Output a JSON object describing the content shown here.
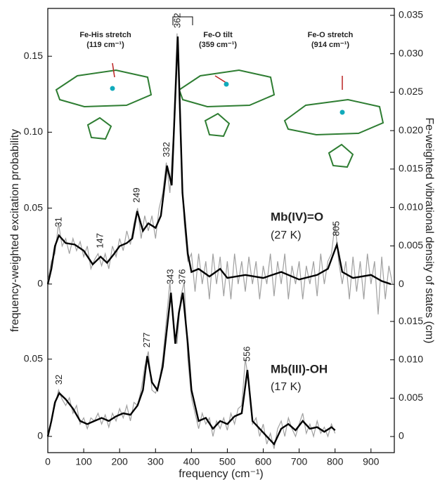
{
  "chart_data": [
    {
      "type": "line",
      "title": "Mb(IV)=O",
      "subtitle": "(27 K)",
      "xlim": [
        0,
        965
      ],
      "ylim": [
        -0.111,
        0.1815
      ],
      "yticks": [
        0,
        0.05,
        {
          "value": 0.1,
          "label": "0.10"
        },
        0.15
      ],
      "y2lim": [
        -0.0219,
        0.0359
      ],
      "y2ticks": [
        0,
        0.005,
        {
          "value": 0.01,
          "label": "0.010"
        },
        0.015,
        {
          "value": 0.02,
          "label": "0.020"
        },
        0.025,
        {
          "value": 0.03,
          "label": "0.030"
        },
        0.035
      ],
      "peaks": [
        31,
        147,
        249,
        332,
        362,
        805
      ],
      "annotations": [
        "Fe-His stretch",
        "(119 cm⁻¹)",
        "Fe-O tilt",
        "(359 cm⁻¹)",
        "Fe-O stretch",
        "(914 cm⁻¹)"
      ],
      "series": [
        {
          "color": "#a0a0a0",
          "x": [
            0,
            10,
            20,
            30,
            40,
            50,
            60,
            70,
            80,
            90,
            100,
            110,
            120,
            130,
            140,
            150,
            160,
            170,
            180,
            190,
            200,
            210,
            220,
            230,
            240,
            250,
            260,
            270,
            280,
            290,
            300,
            310,
            320,
            330,
            340,
            350,
            360,
            370,
            380,
            390,
            400,
            410,
            420,
            430,
            440,
            450,
            460,
            470,
            480,
            490,
            500,
            510,
            520,
            530,
            540,
            550,
            560,
            570,
            580,
            590,
            600,
            610,
            620,
            630,
            640,
            650,
            660,
            670,
            680,
            690,
            700,
            710,
            720,
            730,
            740,
            750,
            760,
            770,
            780,
            790,
            800,
            810,
            820,
            830,
            840,
            850,
            860,
            870,
            880,
            890,
            900,
            910,
            920,
            930,
            940,
            950,
            960
          ],
          "values": [
            0.002,
            0.015,
            0.02,
            0.04,
            0.025,
            0.03,
            0.02,
            0.03,
            0.022,
            0.028,
            0.018,
            0.025,
            0.01,
            0.016,
            0.02,
            0.012,
            0.02,
            0.01,
            0.025,
            0.018,
            0.03,
            0.022,
            0.035,
            0.026,
            0.04,
            0.05,
            0.03,
            0.045,
            0.035,
            0.045,
            0.03,
            0.05,
            0.06,
            0.08,
            0.06,
            0.1,
            0.165,
            0.09,
            0.04,
            0.015,
            0.02,
            -0.005,
            0.02,
            0,
            0.015,
            -0.01,
            0.02,
            0,
            0.018,
            -0.008,
            0.015,
            -0.01,
            0.02,
            0,
            0.015,
            -0.005,
            0.018,
            0,
            0.015,
            -0.01,
            0.012,
            0,
            0.02,
            -0.008,
            0.015,
            0,
            0.02,
            -0.01,
            0.012,
            0,
            0.015,
            -0.01,
            0.012,
            0,
            0.015,
            -0.008,
            0.02,
            0,
            0.015,
            0.02,
            0.04,
            0.015,
            0,
            0.015,
            -0.01,
            0.018,
            -0.005,
            0.015,
            -0.01,
            0.02,
            0,
            0.015,
            -0.02,
            0.018,
            -0.01,
            0.012,
            0
          ]
        },
        {
          "color": "#000000",
          "x": [
            0,
            10,
            20,
            31,
            50,
            75,
            100,
            125,
            147,
            165,
            185,
            200,
            220,
            235,
            249,
            265,
            280,
            300,
            315,
            332,
            345,
            362,
            375,
            390,
            400,
            420,
            450,
            480,
            500,
            550,
            600,
            650,
            700,
            750,
            780,
            805,
            820,
            850,
            900,
            930,
            955
          ],
          "values": [
            0,
            0.01,
            0.025,
            0.032,
            0.027,
            0.026,
            0.022,
            0.013,
            0.018,
            0.014,
            0.02,
            0.025,
            0.027,
            0.03,
            0.048,
            0.035,
            0.04,
            0.037,
            0.045,
            0.078,
            0.065,
            0.163,
            0.06,
            0.02,
            0.008,
            0.01,
            0.005,
            0.01,
            0.004,
            0.006,
            0.004,
            0.008,
            0.003,
            0.006,
            0.01,
            0.026,
            0.008,
            0.004,
            0.006,
            0.002,
            0
          ]
        }
      ]
    },
    {
      "type": "line",
      "title": "Mb(III)-OH",
      "subtitle": "(17 K)",
      "xlabel": "frequency (cm⁻¹)",
      "ylabel": "frequency-weighted excitation probability",
      "y2label": "Fe-weighted vibrational density of states (cm)",
      "xlim": [
        0,
        965
      ],
      "xticks": [
        0,
        100,
        200,
        300,
        400,
        500,
        600,
        700,
        800,
        900
      ],
      "ylim": [
        -0.0105,
        0.277
      ],
      "yticks": [
        0,
        0.05
      ],
      "y2lim": [
        -0.0021,
        0.0558
      ],
      "y2ticks": [
        0,
        0.005,
        {
          "value": 0.01,
          "label": "0.010"
        },
        0.015
      ],
      "peaks": [
        32,
        277,
        343,
        376,
        556
      ],
      "series": [
        {
          "color": "#a0a0a0",
          "x": [
            0,
            10,
            20,
            30,
            40,
            50,
            60,
            70,
            80,
            90,
            100,
            110,
            120,
            130,
            140,
            150,
            160,
            170,
            180,
            190,
            200,
            210,
            220,
            230,
            240,
            250,
            260,
            270,
            280,
            290,
            300,
            310,
            320,
            330,
            340,
            350,
            360,
            370,
            380,
            390,
            400,
            410,
            420,
            430,
            440,
            450,
            460,
            470,
            480,
            490,
            500,
            510,
            520,
            530,
            540,
            550,
            560,
            570,
            580,
            590,
            600,
            610,
            620,
            630,
            640,
            650,
            660,
            670,
            680,
            690,
            700,
            710,
            720,
            730,
            740,
            750,
            760,
            770,
            780,
            790,
            800
          ],
          "values": [
            0,
            0.01,
            0.02,
            0.03,
            0.024,
            0.02,
            0.025,
            0.015,
            0.02,
            0.008,
            0.012,
            0.005,
            0.012,
            0.01,
            0.015,
            0.008,
            0.014,
            0.006,
            0.015,
            0.01,
            0.018,
            0.012,
            0.02,
            0.01,
            0.022,
            0.02,
            0.03,
            0.045,
            0.055,
            0.03,
            0.028,
            0.035,
            0.05,
            0.075,
            0.1,
            0.07,
            0.06,
            0.09,
            0.1,
            0.05,
            0.025,
            0.015,
            0.005,
            0.015,
            0.008,
            0.012,
            0,
            0.01,
            0.005,
            0.012,
            0.004,
            0.015,
            0.008,
            0.018,
            0.02,
            0.05,
            0.035,
            0.008,
            0.012,
            0,
            0.008,
            -0.005,
            0.002,
            -0.008,
            0.005,
            0.01,
            0,
            0.012,
            0.005,
            0,
            0.008,
            0.015,
            0.002,
            0.008,
            0,
            0.01,
            0.002,
            0.006,
            0,
            0.008,
            0.002
          ]
        },
        {
          "color": "#000000",
          "x": [
            0,
            10,
            20,
            32,
            50,
            70,
            90,
            110,
            130,
            150,
            170,
            190,
            210,
            230,
            250,
            265,
            277,
            290,
            305,
            320,
            332,
            343,
            355,
            365,
            376,
            390,
            400,
            420,
            440,
            460,
            480,
            500,
            520,
            540,
            556,
            570,
            590,
            610,
            630,
            650,
            670,
            690,
            710,
            730,
            750,
            770,
            790,
            800
          ],
          "values": [
            0,
            0.01,
            0.022,
            0.028,
            0.024,
            0.018,
            0.01,
            0.008,
            0.01,
            0.012,
            0.01,
            0.013,
            0.015,
            0.014,
            0.02,
            0.03,
            0.052,
            0.035,
            0.03,
            0.045,
            0.07,
            0.093,
            0.06,
            0.08,
            0.093,
            0.06,
            0.03,
            0.01,
            0.012,
            0.005,
            0.01,
            0.008,
            0.013,
            0.015,
            0.043,
            0.01,
            0.005,
            0,
            -0.005,
            0.005,
            0.008,
            0.004,
            0.01,
            0.005,
            0.006,
            0.003,
            0.006,
            0.004
          ]
        }
      ]
    }
  ]
}
